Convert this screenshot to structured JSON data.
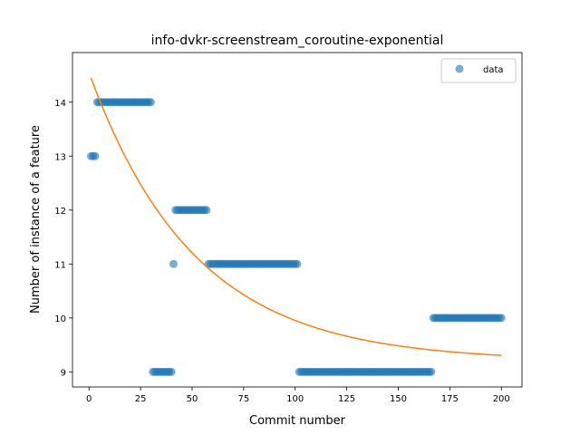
{
  "chart_data": {
    "type": "scatter",
    "title": "info-dvkr-screenstream_coroutine-exponential",
    "xlabel": "Commit number",
    "ylabel": "Number of instance of a feature",
    "xlim": [
      -8,
      210
    ],
    "ylim": [
      8.72,
      14.92
    ],
    "xticks": [
      0,
      25,
      50,
      75,
      100,
      125,
      150,
      175,
      200
    ],
    "yticks": [
      9,
      10,
      11,
      12,
      13,
      14
    ],
    "grid": false,
    "legend": {
      "placement": "top-right",
      "entries": [
        "data"
      ]
    },
    "colors": {
      "data": "#1f77b4",
      "fit": "#ff7f0e"
    },
    "segments": [
      {
        "x_start": 1,
        "x_end": 3,
        "y": 13
      },
      {
        "x_start": 4,
        "x_end": 30,
        "y": 14
      },
      {
        "x_start": 31,
        "x_end": 40,
        "y": 9
      },
      {
        "x_start": 41,
        "x_end": 41,
        "y": 11
      },
      {
        "x_start": 42,
        "x_end": 57,
        "y": 12
      },
      {
        "x_start": 58,
        "x_end": 101,
        "y": 11
      },
      {
        "x_start": 102,
        "x_end": 166,
        "y": 9
      },
      {
        "x_start": 167,
        "x_end": 200,
        "y": 10
      }
    ],
    "series": [
      {
        "name": "data",
        "kind": "scatter"
      },
      {
        "kind": "line",
        "model": "exponential",
        "a": 5.35,
        "b": 0.0196,
        "c": 9.2,
        "x_range": [
          1,
          200
        ]
      }
    ]
  }
}
